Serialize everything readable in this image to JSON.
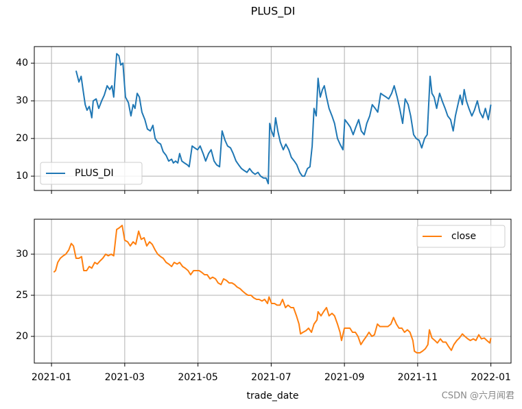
{
  "title": "PLUS_DI",
  "watermark": "CSDN @六月闻君",
  "chart_data": [
    {
      "type": "line",
      "xlim": [
        -0.47,
        12.55
      ],
      "xticks": [
        0,
        2,
        4,
        6,
        8,
        10,
        12
      ],
      "ylim": [
        6.2,
        44.4
      ],
      "yticks": [
        10,
        20,
        30,
        40
      ],
      "grid": true,
      "legend": "lower left",
      "x": [
        0.67,
        0.75,
        0.81,
        0.86,
        0.92,
        0.97,
        1.03,
        1.07,
        1.1,
        1.14,
        1.22,
        1.29,
        1.37,
        1.44,
        1.52,
        1.59,
        1.65,
        1.7,
        1.78,
        1.84,
        1.89,
        1.95,
        2.02,
        2.1,
        2.17,
        2.23,
        2.28,
        2.34,
        2.4,
        2.47,
        2.55,
        2.62,
        2.7,
        2.77,
        2.83,
        2.9,
        2.98,
        3.05,
        3.13,
        3.2,
        3.28,
        3.33,
        3.39,
        3.45,
        3.5,
        3.56,
        3.63,
        3.71,
        3.76,
        3.84,
        3.91,
        3.99,
        4.06,
        4.14,
        4.21,
        4.29,
        4.36,
        4.44,
        4.51,
        4.59,
        4.66,
        4.74,
        4.81,
        4.89,
        4.96,
        5.04,
        5.11,
        5.19,
        5.26,
        5.34,
        5.41,
        5.49,
        5.56,
        5.64,
        5.71,
        5.79,
        5.86,
        5.92,
        5.96,
        6.01,
        6.07,
        6.12,
        6.18,
        6.25,
        6.33,
        6.4,
        6.48,
        6.55,
        6.63,
        6.7,
        6.78,
        6.85,
        6.91,
        6.99,
        7.06,
        7.12,
        7.17,
        7.23,
        7.28,
        7.34,
        7.4,
        7.45,
        7.51,
        7.58,
        7.66,
        7.73,
        7.81,
        7.88,
        7.96,
        8.01,
        8.09,
        8.16,
        8.24,
        8.31,
        8.39,
        8.46,
        8.54,
        8.61,
        8.69,
        8.76,
        8.84,
        8.91,
        8.99,
        9.06,
        9.14,
        9.21,
        9.29,
        9.36,
        9.44,
        9.51,
        9.59,
        9.66,
        9.74,
        9.81,
        9.89,
        9.96,
        10.04,
        10.11,
        10.19,
        10.26,
        10.34,
        10.39,
        10.45,
        10.52,
        10.6,
        10.67,
        10.75,
        10.82,
        10.9,
        10.97,
        11.03,
        11.1,
        11.16,
        11.22,
        11.27,
        11.33,
        11.4,
        11.48,
        11.55,
        11.63,
        11.7,
        11.78,
        11.85,
        11.93,
        12.0
      ],
      "series": [
        {
          "name": "PLUS_DI",
          "color": "#1f77b4",
          "values": [
            38,
            35,
            36.5,
            33,
            29,
            27.5,
            28.5,
            27,
            25.5,
            30,
            30.5,
            28,
            30,
            31.5,
            34,
            33,
            34,
            31,
            42.5,
            42,
            39.5,
            40,
            31,
            29.5,
            26,
            29,
            28,
            32,
            31,
            27,
            25,
            22.5,
            22,
            23.5,
            20,
            19,
            18.5,
            16.5,
            15.5,
            14,
            14.5,
            13.5,
            14,
            13.5,
            16,
            14,
            13.5,
            13,
            12.5,
            18,
            17.5,
            17,
            18,
            16,
            14,
            16,
            17,
            14,
            13,
            12.5,
            22,
            19.5,
            18,
            17.5,
            16,
            14,
            13,
            12,
            11.5,
            11,
            12,
            11,
            10.5,
            11,
            10,
            9.5,
            9.5,
            8,
            24,
            22,
            20.5,
            25.5,
            22,
            19,
            17,
            18.5,
            17,
            15,
            14,
            13,
            11,
            10,
            10,
            12,
            12.5,
            18,
            28,
            26,
            36,
            31,
            33,
            34,
            31,
            28,
            26,
            24,
            20,
            18.5,
            17,
            25,
            24,
            23,
            21,
            23,
            25,
            22,
            21,
            24,
            26,
            29,
            28,
            27,
            32,
            31.5,
            31,
            30.5,
            32,
            34,
            31,
            28,
            24,
            30.5,
            29,
            26,
            21,
            20,
            19.5,
            17.5,
            20,
            21,
            36.5,
            32,
            31,
            28,
            32,
            30,
            28,
            26,
            25,
            22,
            26,
            29,
            31.5,
            29,
            33,
            30,
            28,
            26,
            27.5,
            30,
            27,
            25.5,
            28,
            25,
            29
          ]
        }
      ]
    },
    {
      "type": "line",
      "xlim": [
        -0.47,
        12.55
      ],
      "xticks": [
        {
          "value": 0,
          "label": "2021-01"
        },
        {
          "value": 2,
          "label": "2021-03"
        },
        {
          "value": 4,
          "label": "2021-05"
        },
        {
          "value": 6,
          "label": "2021-07"
        },
        {
          "value": 8,
          "label": "2021-09"
        },
        {
          "value": 10,
          "label": "2021-11"
        },
        {
          "value": 12,
          "label": "2022-01"
        }
      ],
      "xlabel": "trade_date",
      "ylim": [
        16.75,
        34.25
      ],
      "yticks": [
        20,
        25,
        30
      ],
      "grid": true,
      "legend": "upper right",
      "x": [
        0.06,
        0.11,
        0.17,
        0.24,
        0.32,
        0.39,
        0.47,
        0.54,
        0.6,
        0.67,
        0.75,
        0.82,
        0.88,
        0.96,
        1.03,
        1.1,
        1.18,
        1.25,
        1.33,
        1.4,
        1.48,
        1.55,
        1.63,
        1.7,
        1.78,
        1.85,
        1.93,
        2.0,
        2.08,
        2.15,
        2.23,
        2.3,
        2.38,
        2.45,
        2.53,
        2.6,
        2.68,
        2.75,
        2.83,
        2.9,
        2.98,
        3.05,
        3.13,
        3.2,
        3.28,
        3.35,
        3.43,
        3.5,
        3.58,
        3.65,
        3.73,
        3.8,
        3.88,
        3.95,
        4.03,
        4.1,
        4.18,
        4.25,
        4.33,
        4.4,
        4.48,
        4.55,
        4.63,
        4.7,
        4.78,
        4.85,
        4.93,
        5.0,
        5.07,
        5.15,
        5.22,
        5.3,
        5.37,
        5.45,
        5.52,
        5.6,
        5.67,
        5.75,
        5.82,
        5.9,
        5.94,
        6.01,
        6.09,
        6.16,
        6.24,
        6.31,
        6.39,
        6.46,
        6.54,
        6.61,
        6.69,
        6.76,
        6.8,
        6.87,
        6.95,
        7.02,
        7.1,
        7.17,
        7.25,
        7.28,
        7.36,
        7.43,
        7.51,
        7.58,
        7.66,
        7.73,
        7.81,
        7.88,
        7.92,
        8.0,
        8.07,
        8.15,
        8.22,
        8.3,
        8.37,
        8.45,
        8.52,
        8.6,
        8.67,
        8.75,
        8.82,
        8.9,
        8.97,
        9.04,
        9.12,
        9.19,
        9.27,
        9.34,
        9.42,
        9.49,
        9.57,
        9.64,
        9.72,
        9.79,
        9.87,
        9.91,
        9.98,
        10.06,
        10.13,
        10.21,
        10.28,
        10.32,
        10.39,
        10.47,
        10.54,
        10.62,
        10.69,
        10.77,
        10.84,
        10.92,
        10.99,
        11.07,
        11.14,
        11.22,
        11.29,
        11.37,
        11.44,
        11.52,
        11.59,
        11.67,
        11.74,
        11.82,
        11.89,
        11.97,
        12.0
      ],
      "series": [
        {
          "name": "close",
          "color": "#ff7f0e",
          "values": [
            27.8,
            28,
            29,
            29.5,
            29.8,
            30,
            30.5,
            31.3,
            31,
            29.5,
            29.5,
            29.7,
            28,
            28,
            28.5,
            28.3,
            29,
            28.8,
            29.2,
            29.5,
            30,
            29.8,
            30,
            29.8,
            33,
            33.2,
            33.5,
            31.7,
            31.5,
            31,
            31.5,
            31.2,
            32.8,
            31.8,
            32,
            31,
            31.5,
            31.2,
            30.5,
            30,
            29.7,
            29.5,
            29,
            28.8,
            28.5,
            29,
            28.8,
            29,
            28.5,
            28.3,
            28,
            27.5,
            28,
            28,
            28,
            27.8,
            27.5,
            27.5,
            27,
            27.2,
            27,
            26.5,
            26.3,
            27,
            26.8,
            26.5,
            26.5,
            26.3,
            26,
            25.8,
            25.5,
            25.2,
            25,
            25,
            24.7,
            24.5,
            24.5,
            24.3,
            24.5,
            24,
            24.8,
            24,
            24,
            23.8,
            23.8,
            24.5,
            23.5,
            23.8,
            23.5,
            23.5,
            22.5,
            21.5,
            20.3,
            20.5,
            20.7,
            21,
            20.5,
            21.5,
            22,
            23,
            22.5,
            23,
            23.5,
            22.5,
            22.8,
            22.5,
            21.5,
            20.5,
            19.5,
            21,
            21,
            21,
            20.5,
            20.5,
            20,
            19,
            19.5,
            20,
            20.5,
            20,
            20.2,
            21.5,
            21.2,
            21.2,
            21.2,
            21.2,
            21.5,
            22.3,
            21.5,
            21,
            21,
            20.5,
            20.8,
            20.5,
            19.5,
            18.2,
            18,
            18,
            18.2,
            18.5,
            19,
            20.8,
            19.8,
            19.5,
            19.2,
            19.7,
            19.3,
            19.3,
            18.8,
            18.3,
            19,
            19.5,
            19.8,
            20.3,
            20,
            19.7,
            19.5,
            19.7,
            19.5,
            20.2,
            19.7,
            19.8,
            19.5,
            19.2,
            19.8
          ]
        }
      ]
    }
  ]
}
